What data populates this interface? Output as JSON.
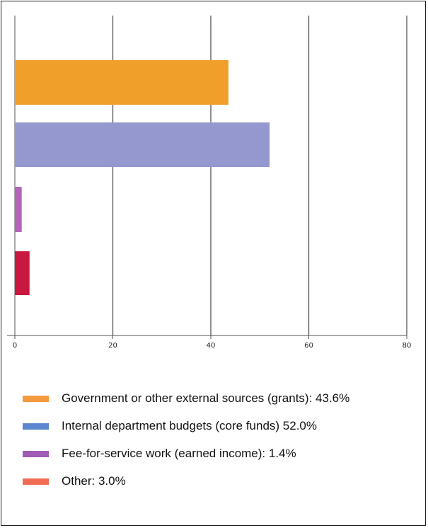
{
  "chart_data": {
    "type": "bar",
    "orientation": "horizontal",
    "categories": [
      "Government or other external sources (grants): 43.6%",
      "Internal department budgets (core funds) 52.0%",
      "Fee-for-service work (earned income): 1.4%",
      "Other: 3.0%"
    ],
    "values": [
      43.6,
      52.0,
      1.4,
      3.0
    ],
    "bar_colors": [
      "#f0a02a",
      "#9598cf",
      "#b565b8",
      "#c8183f"
    ],
    "legend_colors": [
      "#f59a3f",
      "#5c86cf",
      "#a25bb5",
      "#f06c55"
    ],
    "xlim": [
      0,
      80
    ],
    "xticks": [
      "0",
      "20",
      "40",
      "60",
      "80"
    ],
    "grid": true,
    "legend_position": "bottom",
    "title": "",
    "xlabel": "",
    "ylabel": ""
  }
}
